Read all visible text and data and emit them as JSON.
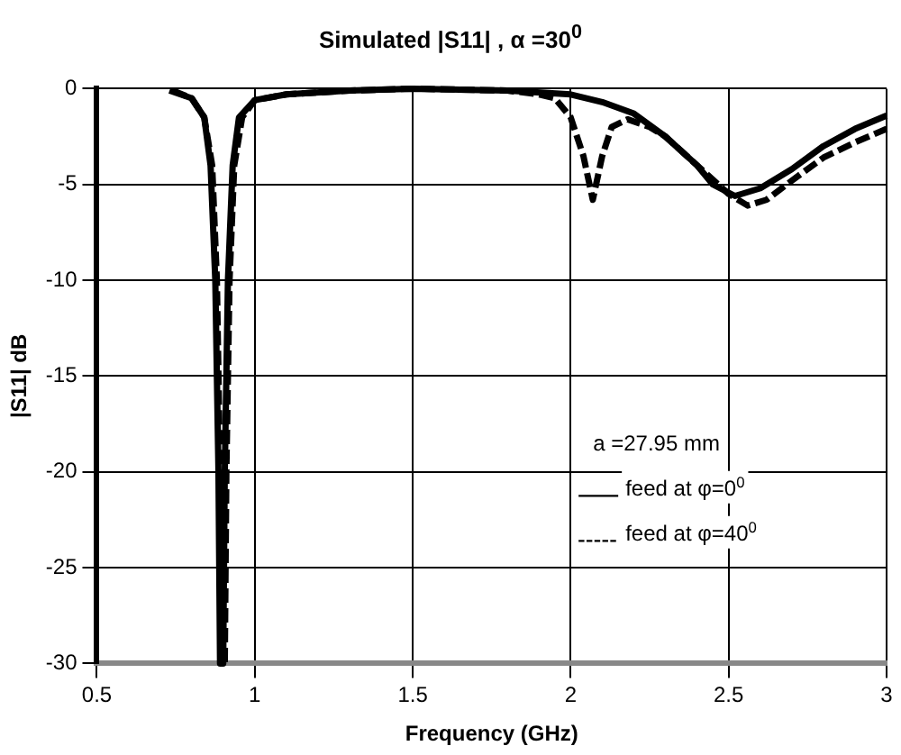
{
  "chart_data": {
    "type": "line",
    "title": "Simulated |S11| , α =30$^{0}$",
    "xlabel": "Frequency (GHz)",
    "ylabel": "|S11| dB",
    "xlim": [
      0.5,
      3
    ],
    "xticks": [
      0.5,
      1,
      1.5,
      2,
      2.5,
      3
    ],
    "ylim": [
      -30,
      0
    ],
    "yticks": [
      -30,
      -25,
      -20,
      -15,
      -10,
      -5,
      0
    ],
    "grid": true,
    "legend": "right",
    "marker": "none",
    "annotations": [
      "a =27.95 mm"
    ],
    "series": [
      {
        "name": "feed at φ=0$^{0}$",
        "color": "#000000",
        "line_style": "solid",
        "x": [
          0.73,
          0.8,
          0.84,
          0.86,
          0.875,
          0.885,
          0.89,
          0.9,
          0.905,
          0.915,
          0.93,
          0.95,
          1.0,
          1.1,
          1.3,
          1.5,
          1.8,
          2.0,
          2.1,
          2.2,
          2.3,
          2.4,
          2.45,
          2.52,
          2.6,
          2.7,
          2.8,
          2.9,
          3.0
        ],
        "values": [
          -0.1,
          -0.5,
          -1.5,
          -4,
          -10,
          -20,
          -30,
          -30,
          -20,
          -10,
          -4,
          -1.5,
          -0.6,
          -0.3,
          -0.1,
          0,
          -0.1,
          -0.3,
          -0.7,
          -1.3,
          -2.5,
          -4,
          -5,
          -5.6,
          -5.2,
          -4.2,
          -3,
          -2.1,
          -1.4
        ]
      },
      {
        "name": "feed at φ=40$^{0}$",
        "color": "#000000",
        "line_style": "dashed",
        "x": [
          0.74,
          0.8,
          0.84,
          0.865,
          0.88,
          0.89,
          0.895,
          0.905,
          0.91,
          0.92,
          0.935,
          0.96,
          1.0,
          1.1,
          1.3,
          1.5,
          1.8,
          1.9,
          1.95,
          2.0,
          2.04,
          2.07,
          2.1,
          2.13,
          2.18,
          2.25,
          2.3,
          2.4,
          2.5,
          2.56,
          2.62,
          2.7,
          2.8,
          2.9,
          3.0
        ],
        "values": [
          -0.1,
          -0.5,
          -1.5,
          -4,
          -10,
          -20,
          -30,
          -30,
          -20,
          -10,
          -4,
          -1.5,
          -0.6,
          -0.3,
          -0.1,
          0,
          -0.1,
          -0.3,
          -0.5,
          -1.5,
          -3.5,
          -5.8,
          -3.5,
          -2,
          -1.6,
          -2,
          -2.5,
          -4,
          -5.5,
          -6.1,
          -5.8,
          -4.8,
          -3.6,
          -2.8,
          -2.1
        ]
      }
    ]
  }
}
